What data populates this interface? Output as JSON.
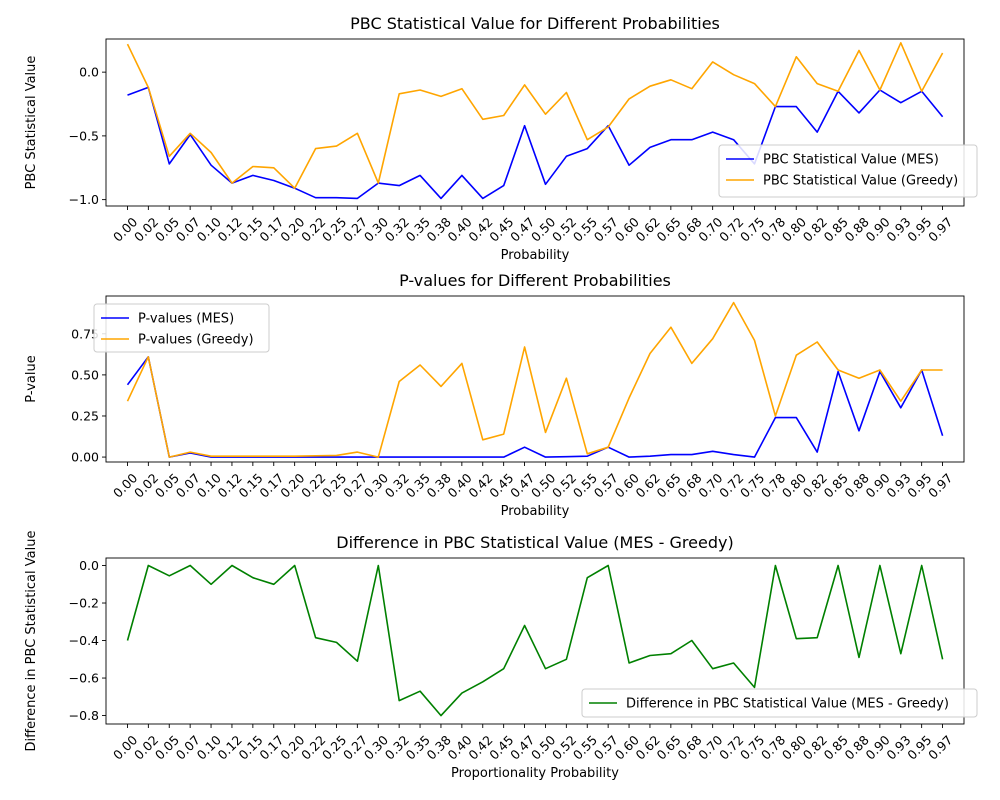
{
  "chart_data": [
    {
      "type": "line",
      "title": "PBC Statistical Value for Different Probabilities",
      "xlabel": "Probability",
      "ylabel": "PBC Statistical Value",
      "ylim": [
        -1.05,
        0.26
      ],
      "yticks": [
        -1.0,
        -0.5,
        0.0
      ],
      "ytick_labels": [
        "−1.0",
        "−0.5",
        "0.0"
      ],
      "legend_position": "lower-right",
      "x": [
        "0.00",
        "0.02",
        "0.05",
        "0.07",
        "0.10",
        "0.12",
        "0.15",
        "0.17",
        "0.20",
        "0.22",
        "0.25",
        "0.27",
        "0.30",
        "0.32",
        "0.35",
        "0.38",
        "0.40",
        "0.42",
        "0.45",
        "0.47",
        "0.50",
        "0.52",
        "0.55",
        "0.57",
        "0.60",
        "0.62",
        "0.65",
        "0.68",
        "0.70",
        "0.72",
        "0.75",
        "0.78",
        "0.80",
        "0.82",
        "0.85",
        "0.88",
        "0.90",
        "0.93",
        "0.95",
        "0.97"
      ],
      "series": [
        {
          "name": "PBC Statistical Value (MES)",
          "color": "#0000ff",
          "values": [
            -0.18,
            -0.12,
            -0.72,
            -0.49,
            -0.73,
            -0.87,
            -0.81,
            -0.85,
            -0.91,
            -0.985,
            -0.985,
            -0.99,
            -0.87,
            -0.89,
            -0.81,
            -0.99,
            -0.81,
            -0.99,
            -0.89,
            -0.42,
            -0.88,
            -0.66,
            -0.6,
            -0.42,
            -0.73,
            -0.59,
            -0.53,
            -0.53,
            -0.47,
            -0.53,
            -0.72,
            -0.27,
            -0.27,
            -0.47,
            -0.15,
            -0.32,
            -0.14,
            -0.24,
            -0.15,
            -0.35
          ]
        },
        {
          "name": "PBC Statistical Value (Greedy)",
          "color": "#ffa500",
          "values": [
            0.22,
            -0.12,
            -0.66,
            -0.48,
            -0.63,
            -0.87,
            -0.74,
            -0.75,
            -0.91,
            -0.6,
            -0.58,
            -0.48,
            -0.87,
            -0.17,
            -0.14,
            -0.19,
            -0.13,
            -0.37,
            -0.34,
            -0.1,
            -0.33,
            -0.16,
            -0.53,
            -0.43,
            -0.21,
            -0.11,
            -0.06,
            -0.13,
            0.08,
            -0.02,
            -0.09,
            -0.27,
            0.12,
            -0.09,
            -0.15,
            0.17,
            -0.14,
            0.23,
            -0.15,
            0.15
          ]
        }
      ]
    },
    {
      "type": "line",
      "title": "P-values for Different Probabilities",
      "xlabel": "Probability",
      "ylabel": "P-value",
      "ylim": [
        -0.03,
        0.98
      ],
      "yticks": [
        0.0,
        0.25,
        0.5,
        0.75
      ],
      "ytick_labels": [
        "0.00",
        "0.25",
        "0.50",
        "0.75"
      ],
      "legend_position": "upper-left",
      "x": [
        "0.00",
        "0.02",
        "0.05",
        "0.07",
        "0.10",
        "0.12",
        "0.15",
        "0.17",
        "0.20",
        "0.22",
        "0.25",
        "0.27",
        "0.30",
        "0.32",
        "0.35",
        "0.38",
        "0.40",
        "0.42",
        "0.45",
        "0.47",
        "0.50",
        "0.52",
        "0.55",
        "0.57",
        "0.60",
        "0.62",
        "0.65",
        "0.68",
        "0.70",
        "0.72",
        "0.75",
        "0.78",
        "0.80",
        "0.82",
        "0.85",
        "0.88",
        "0.90",
        "0.93",
        "0.95",
        "0.97"
      ],
      "series": [
        {
          "name": "P-values (MES)",
          "color": "#0000ff",
          "values": [
            0.44,
            0.61,
            0.0,
            0.025,
            0.0,
            0.0,
            0.0,
            0.0,
            0.0,
            0.0,
            0.0,
            0.0,
            0.0,
            0.0,
            0.0,
            0.0,
            0.0,
            0.0,
            0.0,
            0.06,
            0.0,
            0.002,
            0.005,
            0.06,
            0.0,
            0.005,
            0.015,
            0.015,
            0.035,
            0.015,
            0.0,
            0.24,
            0.24,
            0.03,
            0.52,
            0.16,
            0.52,
            0.3,
            0.53,
            0.13
          ]
        },
        {
          "name": "P-values (Greedy)",
          "color": "#ffa500",
          "values": [
            0.34,
            0.61,
            0.0,
            0.03,
            0.005,
            0.005,
            0.005,
            0.005,
            0.005,
            0.008,
            0.01,
            0.03,
            0.0,
            0.46,
            0.56,
            0.43,
            0.57,
            0.105,
            0.14,
            0.67,
            0.15,
            0.48,
            0.02,
            0.06,
            0.36,
            0.63,
            0.79,
            0.57,
            0.72,
            0.94,
            0.71,
            0.25,
            0.62,
            0.7,
            0.53,
            0.48,
            0.53,
            0.34,
            0.53,
            0.53
          ]
        }
      ]
    },
    {
      "type": "line",
      "title": "Difference in PBC Statistical Value (MES - Greedy)",
      "xlabel": "Proportionality Probability",
      "ylabel": "Difference in PBC Statistical Value",
      "ylim": [
        -0.845,
        0.04
      ],
      "yticks": [
        -0.8,
        -0.6,
        -0.4,
        -0.2,
        0.0
      ],
      "ytick_labels": [
        "−0.8",
        "−0.6",
        "−0.4",
        "−0.2",
        "0.0"
      ],
      "legend_position": "lower-right",
      "x": [
        "0.00",
        "0.02",
        "0.05",
        "0.07",
        "0.10",
        "0.12",
        "0.15",
        "0.17",
        "0.20",
        "0.22",
        "0.25",
        "0.27",
        "0.30",
        "0.32",
        "0.35",
        "0.38",
        "0.40",
        "0.42",
        "0.45",
        "0.47",
        "0.50",
        "0.52",
        "0.55",
        "0.57",
        "0.60",
        "0.62",
        "0.65",
        "0.68",
        "0.70",
        "0.72",
        "0.75",
        "0.78",
        "0.80",
        "0.82",
        "0.85",
        "0.88",
        "0.90",
        "0.93",
        "0.95",
        "0.97"
      ],
      "series": [
        {
          "name": "Difference in PBC Statistical Value (MES - Greedy)",
          "color": "#008000",
          "values": [
            -0.4,
            0.0,
            -0.055,
            0.0,
            -0.1,
            0.0,
            -0.065,
            -0.1,
            0.0,
            -0.385,
            -0.41,
            -0.51,
            0.0,
            -0.72,
            -0.67,
            -0.8,
            -0.68,
            -0.62,
            -0.55,
            -0.32,
            -0.55,
            -0.5,
            -0.065,
            0.0,
            -0.52,
            -0.48,
            -0.47,
            -0.4,
            -0.55,
            -0.52,
            -0.65,
            0.0,
            -0.39,
            -0.385,
            0.0,
            -0.49,
            0.0,
            -0.47,
            0.0,
            -0.5
          ]
        }
      ]
    }
  ]
}
